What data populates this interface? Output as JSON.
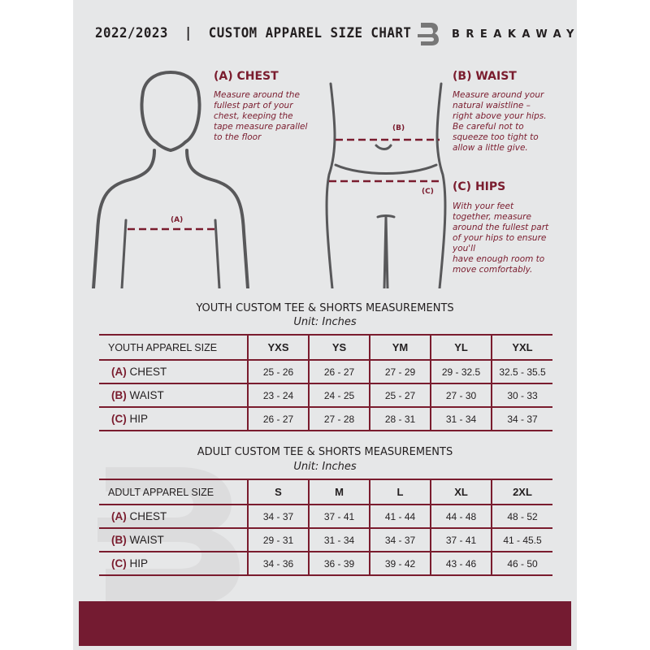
{
  "header": {
    "title": "2022/2023  |  CUSTOM APPAREL SIZE CHART",
    "brand": "BREAKAWAY",
    "logo_letter": "B"
  },
  "guide": {
    "chest": {
      "heading": "(A) CHEST",
      "text": [
        "Measure around the",
        "fullest part of your",
        "chest, keeping the",
        "tape measure parallel",
        "to the floor"
      ],
      "marker": "(A)"
    },
    "waist": {
      "heading": "(B) WAIST",
      "text": [
        "Measure around your",
        "natural waistline –",
        "right above your hips.",
        "Be careful not to",
        "squeeze too tight to",
        "allow a little give."
      ],
      "marker": "(B)"
    },
    "hips": {
      "heading": "(C) HIPS",
      "text": [
        "With your feet",
        "together, measure",
        "around the fullest part",
        "of your hips to ensure",
        "you'll",
        "have enough room to",
        "move comfortably."
      ],
      "marker": "(C)"
    }
  },
  "youth": {
    "title": "YOUTH CUSTOM TEE & SHORTS MEASUREMENTS",
    "unit": "Unit: Inches",
    "corner": "YOUTH APPAREL SIZE",
    "sizes": [
      "YXS",
      "YS",
      "YM",
      "YL",
      "YXL"
    ],
    "rows": [
      {
        "letter": "(A)",
        "name": "CHEST",
        "values": [
          "25 - 26",
          "26 - 27",
          "27 - 29",
          "29 - 32.5",
          "32.5 - 35.5"
        ]
      },
      {
        "letter": "(B)",
        "name": "WAIST",
        "values": [
          "23 - 24",
          "24 - 25",
          "25 - 27",
          "27 - 30",
          "30 - 33"
        ]
      },
      {
        "letter": "(C)",
        "name": "HIP",
        "values": [
          "26 - 27",
          "27 - 28",
          "28 - 31",
          "31 - 34",
          "34 - 37"
        ]
      }
    ]
  },
  "adult": {
    "title": "ADULT CUSTOM TEE & SHORTS MEASUREMENTS",
    "unit": "Unit: Inches",
    "corner": "ADULT APPAREL SIZE",
    "sizes": [
      "S",
      "M",
      "L",
      "XL",
      "2XL"
    ],
    "rows": [
      {
        "letter": "(A)",
        "name": "CHEST",
        "values": [
          "34 - 37",
          "37 - 41",
          "41 - 44",
          "44 - 48",
          "48 - 52"
        ]
      },
      {
        "letter": "(B)",
        "name": "WAIST",
        "values": [
          "29 - 31",
          "31 - 34",
          "34 - 37",
          "37 - 41",
          "41 - 45.5"
        ]
      },
      {
        "letter": "(C)",
        "name": "HIP",
        "values": [
          "34 - 36",
          "36 - 39",
          "39 - 42",
          "43 - 46",
          "46 - 50"
        ]
      }
    ]
  },
  "colors": {
    "accent": "#7a1c2e",
    "panel": "#e6e7e8",
    "footer": "#741b31"
  }
}
